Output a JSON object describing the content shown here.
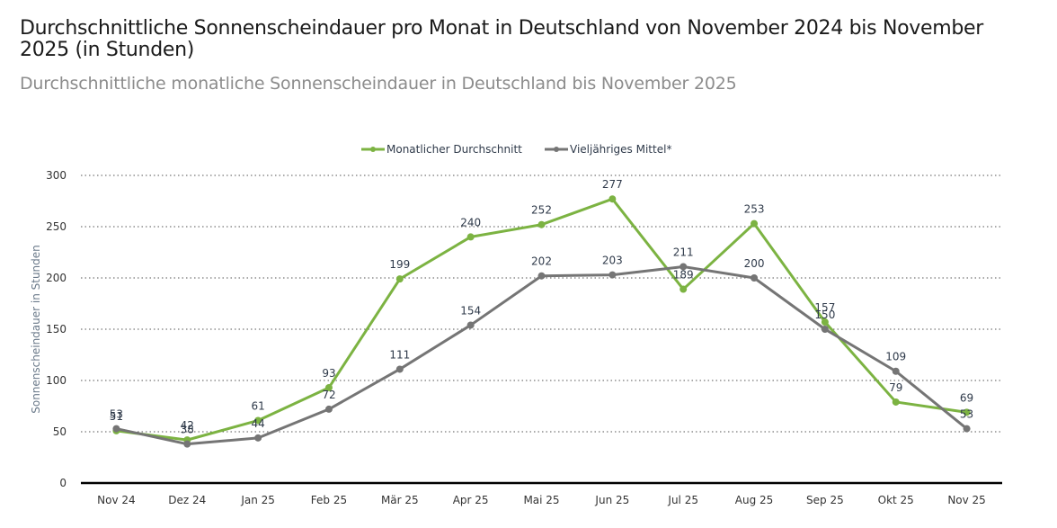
{
  "header": {
    "title": "Durchschnittliche Sonnenscheindauer pro Monat in Deutschland von November 2024 bis November 2025 (in Stunden)",
    "subtitle": "Durchschnittliche monatliche Sonnenscheindauer in Deutschland bis November 2025"
  },
  "chart_data": {
    "type": "line",
    "title": "Durchschnittliche Sonnenscheindauer pro Monat in Deutschland von November 2024 bis November 2025 (in Stunden)",
    "subtitle": "Durchschnittliche monatliche Sonnenscheindauer in Deutschland bis November 2025",
    "xlabel": "",
    "ylabel": "Sonnenscheindauer in Stunden",
    "ylim": [
      0,
      300
    ],
    "yticks": [
      0,
      50,
      100,
      150,
      200,
      250,
      300
    ],
    "grid": "horizontal dotted",
    "legend_position": "top-center",
    "categories": [
      "Nov 24",
      "Dez 24",
      "Jan 25",
      "Feb 25",
      "Mär 25",
      "Apr 25",
      "Mai 25",
      "Jun 25",
      "Jul 25",
      "Aug 25",
      "Sep 25",
      "Okt 25",
      "Nov 25"
    ],
    "series": [
      {
        "name": "Monatlicher Durchschnitt",
        "color": "#7cb342",
        "values": [
          51,
          42,
          61,
          93,
          199,
          240,
          252,
          277,
          189,
          253,
          157,
          79,
          69
        ]
      },
      {
        "name": "Vieljähriges Mittel*",
        "color": "#757575",
        "values": [
          53,
          38,
          44,
          72,
          111,
          154,
          202,
          203,
          211,
          200,
          150,
          109,
          53
        ]
      }
    ]
  }
}
